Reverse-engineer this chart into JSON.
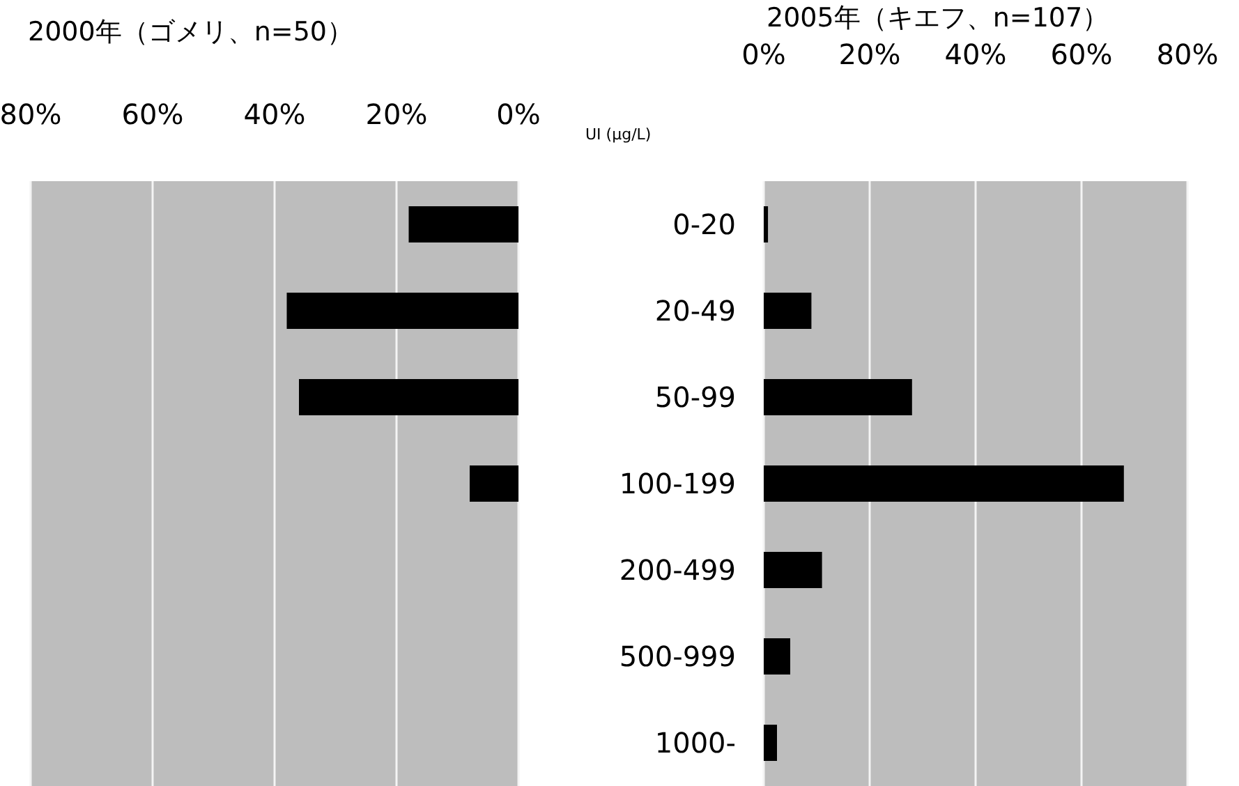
{
  "chart_data": [
    {
      "type": "bar",
      "orientation": "horizontal",
      "title": "2000年（ゴメリ、n=50）",
      "categories": [
        null,
        null,
        null,
        null,
        null,
        null,
        null
      ],
      "values": [
        18,
        38,
        36,
        8,
        0,
        0,
        0
      ],
      "color": "#000000",
      "xlim": [
        80,
        0
      ],
      "xticks": [
        {
          "value": 80,
          "label": "80%"
        },
        {
          "value": 60,
          "label": "60%"
        },
        {
          "value": 40,
          "label": "40%"
        },
        {
          "value": 20,
          "label": "20%"
        },
        {
          "value": 0,
          "label": "0%"
        }
      ],
      "grid": "x",
      "tick_labels": "x"
    },
    {
      "type": "bar",
      "orientation": "horizontal",
      "title": "2005年（キエフ、n=107）",
      "ylabel": "UI (μg/L)",
      "categories": [
        "0-20",
        "20-49",
        "50-99",
        "100-199",
        "200-499",
        "500-999",
        "1000-"
      ],
      "values": [
        0.8,
        9,
        28,
        68,
        11,
        5,
        2.5
      ],
      "color": "#000000",
      "xlim": [
        0,
        80
      ],
      "xticks": [
        {
          "value": 0,
          "label": "0%"
        },
        {
          "value": 20,
          "label": "20%"
        },
        {
          "value": 40,
          "label": "40%"
        },
        {
          "value": 60,
          "label": "60%"
        },
        {
          "value": 80,
          "label": "80%"
        }
      ],
      "grid": "x"
    }
  ]
}
